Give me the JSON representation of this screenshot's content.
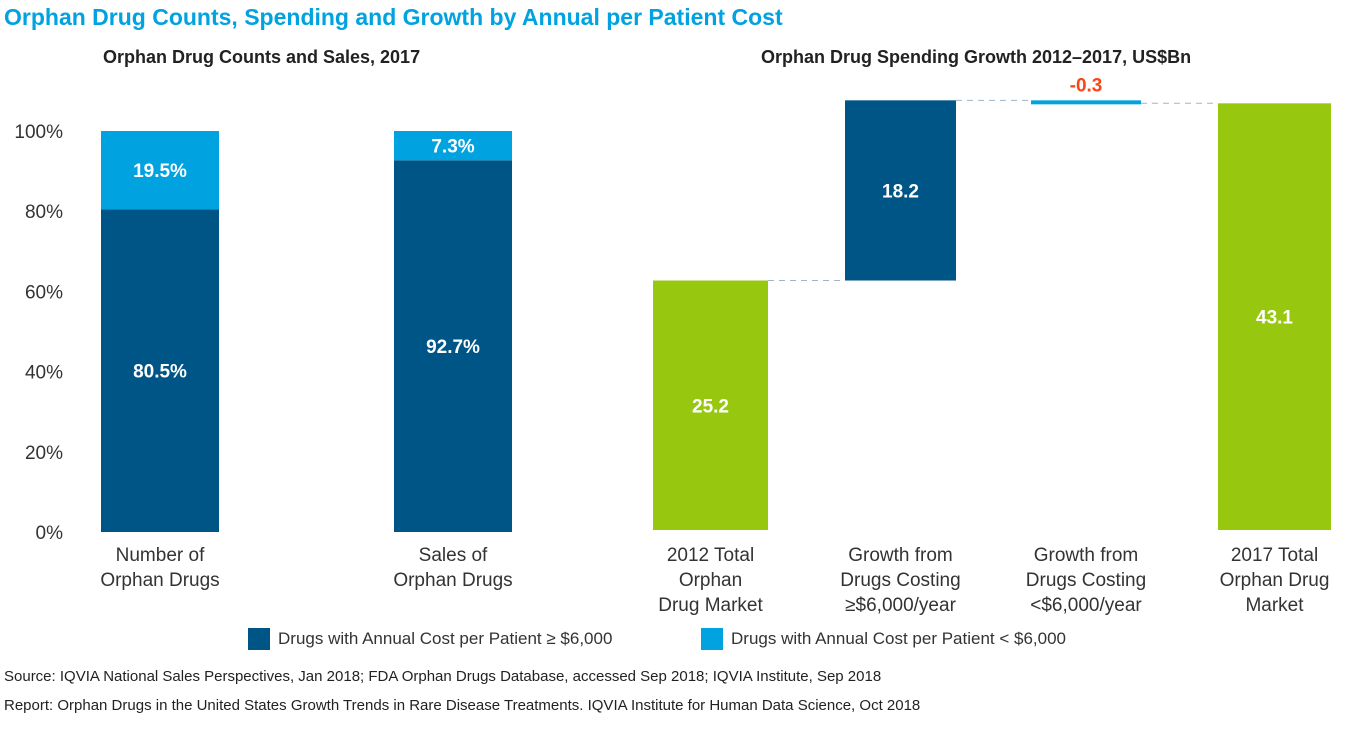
{
  "title": "Orphan Drug Counts, Spending and Growth by Annual per Patient Cost",
  "chart_data": [
    {
      "type": "bar",
      "stacked": true,
      "title": "Orphan Drug Counts and Sales, 2017",
      "categories": [
        "Number of Orphan Drugs",
        "Sales of Orphan Drugs"
      ],
      "category_lines": [
        [
          "Number of",
          "Orphan Drugs"
        ],
        [
          "Sales of",
          "Orphan Drugs"
        ]
      ],
      "series": [
        {
          "name": "Drugs with Annual Cost per Patient ≥ $6,000",
          "color": "#005587",
          "values": [
            80.5,
            92.7
          ],
          "labels": [
            "80.5%",
            "92.7%"
          ]
        },
        {
          "name": "Drugs with Annual Cost per Patient < $6,000",
          "color": "#00a3e0",
          "values": [
            19.5,
            7.3
          ],
          "labels": [
            "19.5%",
            "7.3%"
          ]
        }
      ],
      "ylim": [
        0,
        100
      ],
      "yticks": [
        "0%",
        "20%",
        "40%",
        "60%",
        "80%",
        "100%"
      ],
      "grid": false
    },
    {
      "type": "bar",
      "subtype": "waterfall",
      "title": "Orphan Drug Spending Growth 2012–2017, US$Bn",
      "categories": [
        "2012 Total Orphan Drug Market",
        "Growth from Drugs Costing ≥$6,000/year",
        "Growth from Drugs Costing <$6,000/year",
        "2017 Total Orphan Drug Market"
      ],
      "category_lines": [
        [
          "2012 Total",
          "Orphan",
          "Drug Market"
        ],
        [
          "Growth from",
          "Drugs Costing",
          "≥$6,000/year"
        ],
        [
          "Growth from",
          "Drugs Costing",
          "<$6,000/year"
        ],
        [
          "2017 Total",
          "Orphan Drug",
          "Market"
        ]
      ],
      "values": [
        25.2,
        18.2,
        -0.3,
        43.1
      ],
      "labels": [
        "25.2",
        "18.2",
        "-0.3",
        "43.1"
      ],
      "kinds": [
        "total",
        "delta",
        "delta",
        "total"
      ],
      "colors": [
        "#97c80f",
        "#005587",
        "#00a3e0",
        "#97c80f"
      ],
      "negative_label_color": "#fa4616"
    }
  ],
  "source": "Source: IQVIA National Sales Perspectives, Jan 2018; FDA Orphan Drugs Database, accessed Sep 2018; IQVIA Institute, Sep 2018",
  "report": "Report: Orphan Drugs in the United States Growth Trends in Rare Disease Treatments. IQVIA Institute for Human Data Science, Oct 2018"
}
